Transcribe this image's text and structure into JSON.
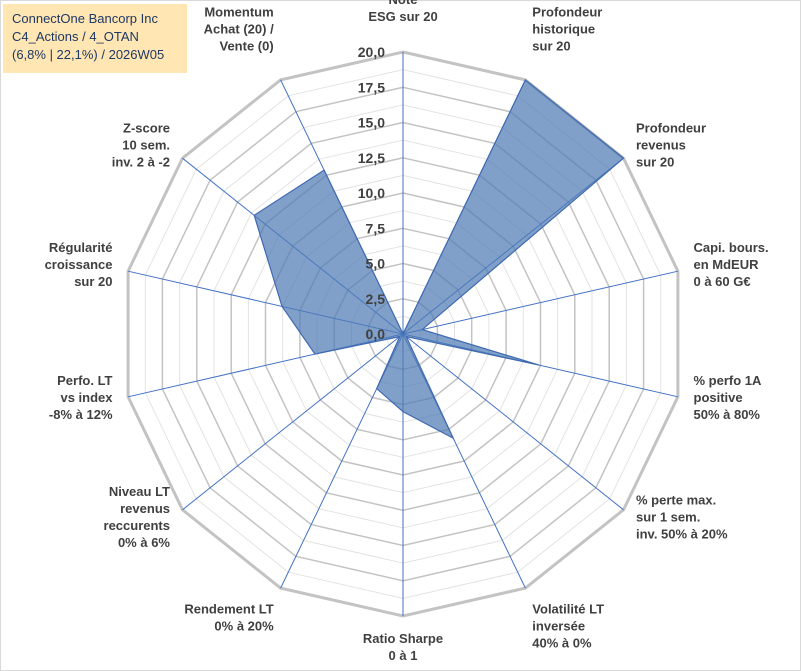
{
  "title_box": {
    "line1": "ConnectOne Bancorp Inc",
    "line2": "C4_Actions / 4_OTAN",
    "line3": "(6,8% | 22,1%) / 2026W05"
  },
  "chart_data": {
    "type": "radar",
    "rlim": [
      0,
      20
    ],
    "ticks": [
      "0,0",
      "2,5",
      "5,0",
      "7,5",
      "10,0",
      "12,5",
      "15,0",
      "17,5",
      "20,0"
    ],
    "tick_values": [
      0,
      2.5,
      5,
      7.5,
      10,
      12.5,
      15,
      17.5,
      20
    ],
    "gridlines": true,
    "axes": [
      {
        "label": [
          "Note",
          "ESG sur 20"
        ],
        "value": 0
      },
      {
        "label": [
          "Profondeur",
          "historique",
          "sur 20"
        ],
        "value": 20
      },
      {
        "label": [
          "Profondeur",
          "revenus",
          "sur 20"
        ],
        "value": 20
      },
      {
        "label": [
          "Capi. bours.",
          "en MdEUR",
          "0 à 60 G€"
        ],
        "value": 1.4
      },
      {
        "label": [
          "% perfo 1A",
          "positive",
          "50% à 80%"
        ],
        "value": 9.9
      },
      {
        "label": [
          "% perte max.",
          "sur 1 sem.",
          "inv. 50% à 20%"
        ],
        "value": 0.3
      },
      {
        "label": [
          "Volatilité LT",
          "inversée",
          "40% à 0%"
        ],
        "value": 8.2
      },
      {
        "label": [
          "Ratio Sharpe",
          "0 à 1"
        ],
        "value": 5.5
      },
      {
        "label": [
          "Rendement LT",
          "0% à 20%"
        ],
        "value": 4.3
      },
      {
        "label": [
          "Niveau LT",
          "revenus",
          "reccurents",
          "0% à 6%"
        ],
        "value": 0.3
      },
      {
        "label": [
          "Perfo. LT",
          "vs index",
          "-8% à 12%"
        ],
        "value": 6.4
      },
      {
        "label": [
          "Régularité",
          "croissance",
          "sur 20"
        ],
        "value": 8.8
      },
      {
        "label": [
          "Z-score",
          "10 sem.",
          "inv. 2 à -2"
        ],
        "value": 13.5
      },
      {
        "label": [
          "Momentum",
          "Achat (20) /",
          "Vente (0)"
        ],
        "value": 12.9
      }
    ],
    "series": [
      {
        "name": "ConnectOne Bancorp Inc",
        "color": "#4f7bb5"
      }
    ]
  }
}
